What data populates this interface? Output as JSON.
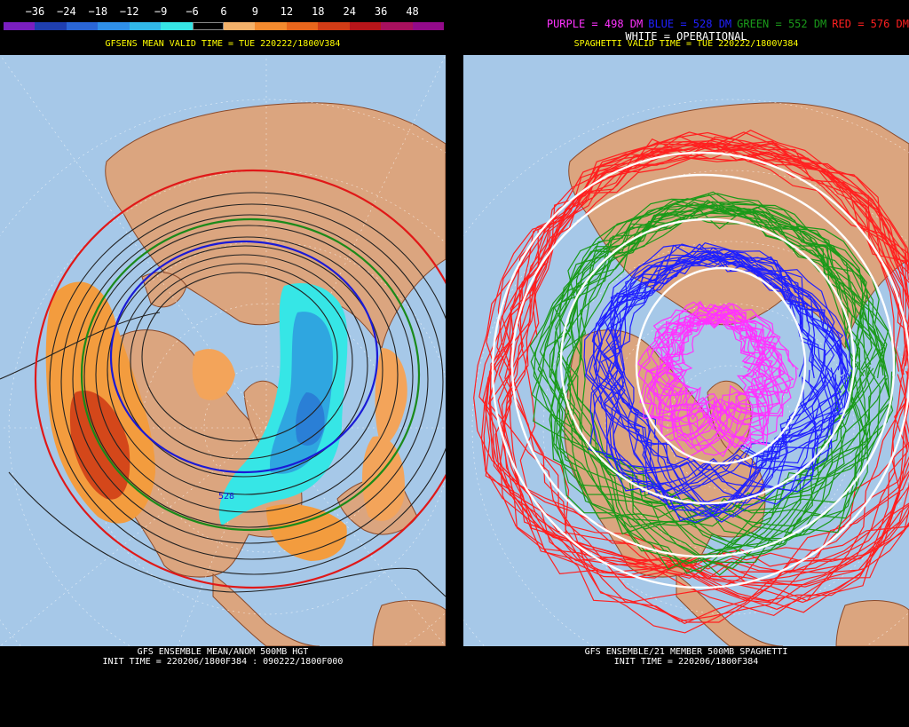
{
  "left": {
    "colorbar": {
      "labels": [
        "−36",
        "−24",
        "−18",
        "−12",
        "−9",
        "−6",
        "6",
        "9",
        "12",
        "18",
        "24",
        "36",
        "48"
      ],
      "colors": [
        "#7a1fc0",
        "#1f3fb0",
        "#2a66d6",
        "#2f8fe8",
        "#31b8e8",
        "#36e6e6",
        "#000000",
        "#f3b16a",
        "#f38a2e",
        "#e8661c",
        "#d23c16",
        "#b8151a",
        "#a8105e",
        "#930a8a"
      ]
    },
    "valid_time": "GFSENS MEAN VALID TIME = TUE 220222/1800V384",
    "footer_line1": "GFS ENSEMBLE MEAN/ANOM 500MB HGT",
    "footer_line2": "INIT TIME = 220206/1800F384 : 090222/1800F000",
    "contour_label": "528"
  },
  "right": {
    "legend": [
      {
        "text": "PURPLE = 498 DM",
        "color": "#ff33ff"
      },
      {
        "text": "BLUE = 528 DM",
        "color": "#2020ff"
      },
      {
        "text": "GREEN = 552 DM",
        "color": "#1a9a1a"
      },
      {
        "text": "RED = 576 DM",
        "color": "#ff2020"
      }
    ],
    "white_legend": "WHITE = OPERATIONAL",
    "valid_time": "SPAGHETTI VALID TIME = TUE 220222/1800V384",
    "footer_line1": "GFS ENSEMBLE/21 MEMBER 500MB SPAGHETTI",
    "footer_line2": "INIT TIME = 220206/1800F384"
  },
  "colors": {
    "ocean": "#a6c8e8",
    "land": "#dba57f",
    "coast": "#8b4a2a"
  }
}
